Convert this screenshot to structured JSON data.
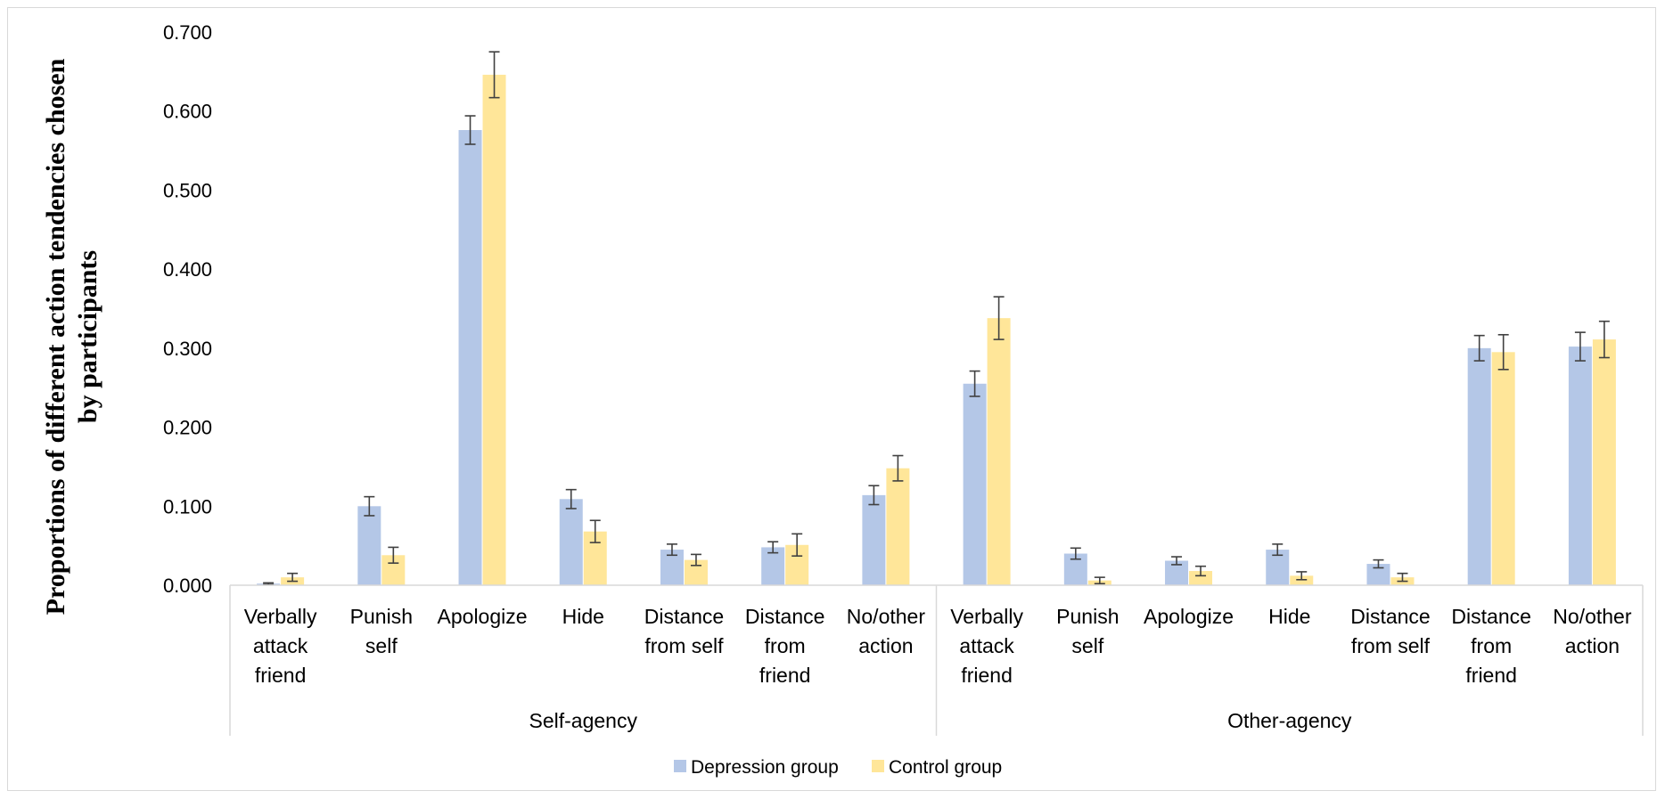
{
  "chart_data": {
    "type": "bar",
    "title": "",
    "ylabel": "Proportions of different action tendencies chosen by participants",
    "ylabel_lines": [
      "Proportions of different action tendencies chosen",
      "by participants"
    ],
    "xlabel": "",
    "ylim": [
      0,
      0.7
    ],
    "yticks": [
      0.0,
      0.1,
      0.2,
      0.3,
      0.4,
      0.5,
      0.6,
      0.7
    ],
    "ytick_labels": [
      "0.000",
      "0.100",
      "0.200",
      "0.300",
      "0.400",
      "0.500",
      "0.600",
      "0.700"
    ],
    "grid": false,
    "legend_position": "bottom",
    "groups": [
      {
        "name": "Self-agency",
        "count": 7
      },
      {
        "name": "Other-agency",
        "count": 7
      }
    ],
    "categories": [
      "Verbally attack friend",
      "Punish self",
      "Apologize",
      "Hide",
      "Distance from self",
      "Distance from friend",
      "No/other action",
      "Verbally attack friend",
      "Punish self",
      "Apologize",
      "Hide",
      "Distance from self",
      "Distance from friend",
      "No/other action"
    ],
    "category_lines": [
      [
        "Verbally",
        "attack",
        "friend"
      ],
      [
        "Punish",
        "self"
      ],
      [
        "Apologize"
      ],
      [
        "Hide"
      ],
      [
        "Distance",
        "from self"
      ],
      [
        "Distance",
        "from",
        "friend"
      ],
      [
        "No/other",
        "action"
      ],
      [
        "Verbally",
        "attack",
        "friend"
      ],
      [
        "Punish",
        "self"
      ],
      [
        "Apologize"
      ],
      [
        "Hide"
      ],
      [
        "Distance",
        "from self"
      ],
      [
        "Distance",
        "from",
        "friend"
      ],
      [
        "No/other",
        "action"
      ]
    ],
    "series": [
      {
        "name": "Depression group",
        "color": "#b4c7e7",
        "values": [
          0.002,
          0.1,
          0.576,
          0.109,
          0.045,
          0.048,
          0.114,
          0.255,
          0.04,
          0.031,
          0.045,
          0.027,
          0.3,
          0.302
        ],
        "errors": [
          0.001,
          0.012,
          0.018,
          0.012,
          0.007,
          0.007,
          0.012,
          0.016,
          0.007,
          0.005,
          0.007,
          0.005,
          0.016,
          0.018
        ]
      },
      {
        "name": "Control group",
        "color": "#ffe699",
        "values": [
          0.01,
          0.038,
          0.646,
          0.068,
          0.032,
          0.051,
          0.148,
          0.338,
          0.006,
          0.018,
          0.012,
          0.01,
          0.295,
          0.311
        ],
        "errors": [
          0.005,
          0.01,
          0.029,
          0.014,
          0.007,
          0.014,
          0.016,
          0.027,
          0.004,
          0.006,
          0.005,
          0.005,
          0.022,
          0.023
        ]
      }
    ]
  }
}
